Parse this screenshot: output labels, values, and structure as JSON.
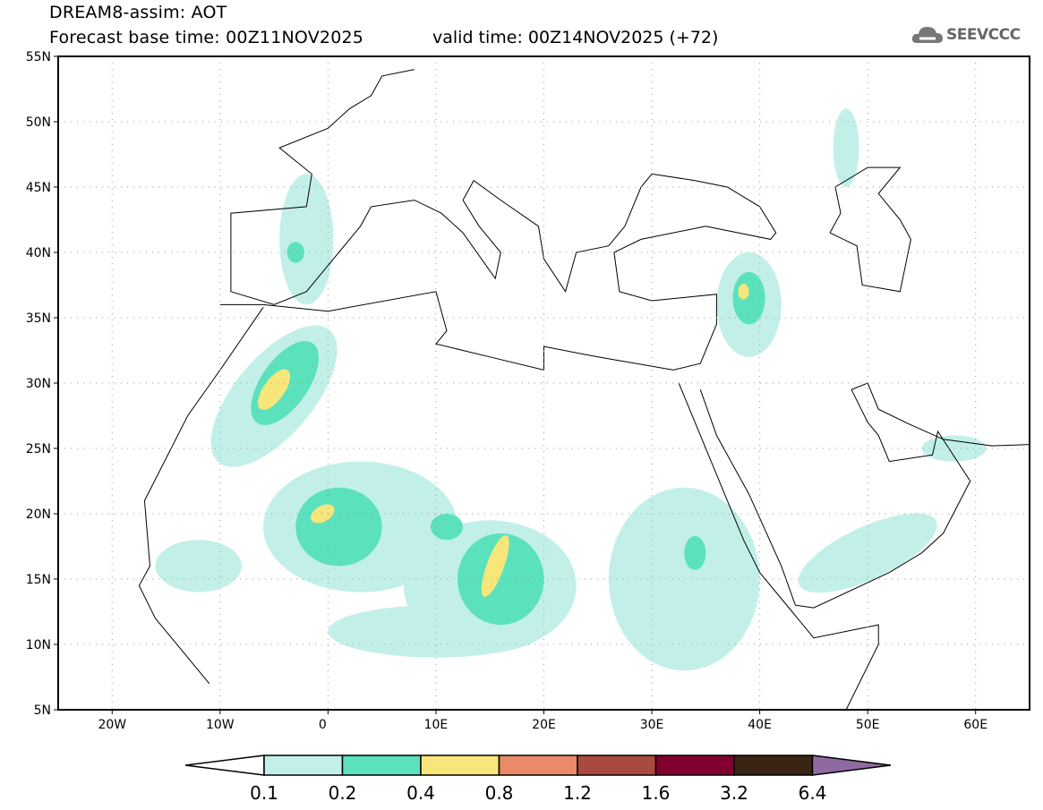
{
  "header": {
    "title": "DREAM8-assim: AOT",
    "base_time": "Forecast base time: 00Z11NOV2025",
    "valid_time": "valid time: 00Z14NOV2025 (+72)",
    "logo_text": "SEEVCCC"
  },
  "map": {
    "lon_range": [
      -25,
      65
    ],
    "lat_range": [
      5,
      55
    ],
    "lat_ticks": [
      "55N",
      "50N",
      "45N",
      "40N",
      "35N",
      "30N",
      "25N",
      "20N",
      "15N",
      "10N",
      "5N"
    ],
    "lon_ticks": [
      "20W",
      "10W",
      "0",
      "10E",
      "20E",
      "30E",
      "40E",
      "50E",
      "60E"
    ]
  },
  "colorbar": {
    "labels": [
      "0.1",
      "0.2",
      "0.4",
      "0.8",
      "1.2",
      "1.6",
      "3.2",
      "6.4"
    ],
    "colors": [
      "#ffffff",
      "#c2f0e9",
      "#5ce1bd",
      "#f7e67a",
      "#ea8a68",
      "#a94a40",
      "#820030",
      "#3a2414",
      "#8f6aa2"
    ]
  }
}
